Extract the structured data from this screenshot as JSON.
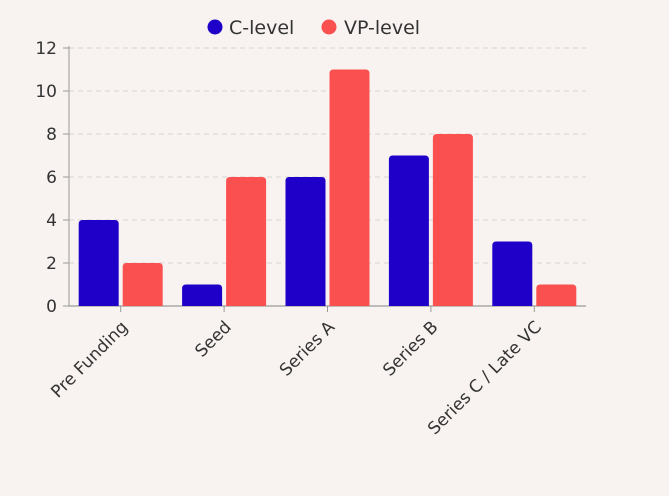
{
  "chart_data": {
    "type": "bar",
    "categories": [
      "Pre Funding",
      "Seed",
      "Series A",
      "Series B",
      "Series C / Late VC"
    ],
    "series": [
      {
        "name": "C-level",
        "values": [
          4,
          1,
          6,
          7,
          3
        ],
        "color": "#1f00c8"
      },
      {
        "name": "VP-level",
        "values": [
          2,
          6,
          11,
          8,
          1
        ],
        "color": "#fa5050"
      }
    ],
    "ylim": [
      0,
      12
    ],
    "yticks": [
      0,
      2,
      4,
      6,
      8,
      10,
      12
    ],
    "grid": true,
    "legend_position": "top-center"
  }
}
